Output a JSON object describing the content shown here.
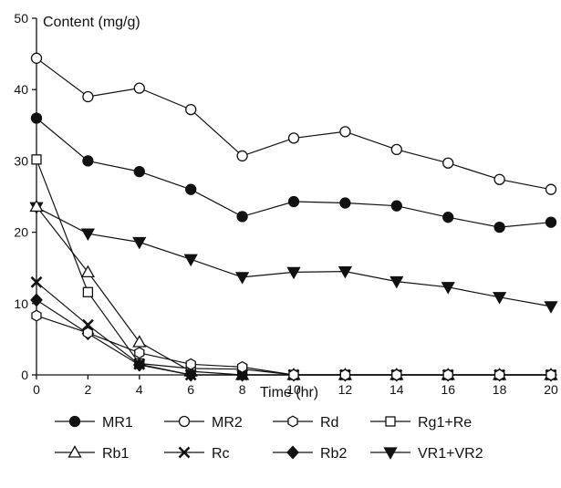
{
  "chart_data": {
    "type": "line",
    "title": "",
    "xlabel": "Time (hr)",
    "ylabel": "Content (mg/g)",
    "xlim": [
      0,
      20
    ],
    "ylim": [
      0,
      50
    ],
    "x_ticks": [
      0,
      2,
      4,
      6,
      8,
      10,
      12,
      14,
      16,
      18,
      20
    ],
    "y_ticks": [
      0,
      10,
      20,
      30,
      40,
      50
    ],
    "grid": false,
    "legend_position": "bottom",
    "x": [
      0,
      2,
      4,
      6,
      8,
      10,
      12,
      14,
      16,
      18,
      20
    ],
    "series": [
      {
        "name": "MR1",
        "marker": "filled-circle",
        "x": [
          0,
          2,
          4,
          6,
          8,
          10,
          12,
          14,
          16,
          18,
          20
        ],
        "values": [
          36.0,
          30.0,
          28.5,
          26.0,
          22.2,
          24.3,
          24.1,
          23.7,
          22.1,
          20.7,
          21.4
        ]
      },
      {
        "name": "MR2",
        "marker": "open-circle",
        "x": [
          0,
          2,
          4,
          6,
          8,
          10,
          12,
          14,
          16,
          18,
          20
        ],
        "values": [
          44.4,
          39.0,
          40.2,
          37.2,
          30.7,
          33.2,
          34.1,
          31.6,
          29.7,
          27.4,
          26.0
        ]
      },
      {
        "name": "Rd",
        "marker": "open-hexagon",
        "x": [
          0,
          2,
          4,
          6,
          8,
          10,
          12,
          14,
          16,
          18,
          20
        ],
        "values": [
          8.3,
          5.9,
          3.1,
          1.5,
          1.1,
          0,
          0,
          0,
          0,
          0,
          0
        ]
      },
      {
        "name": "Rg1+Re",
        "marker": "open-square",
        "x": [
          0,
          2,
          4,
          6,
          8,
          10,
          12,
          14,
          16,
          18,
          20
        ],
        "values": [
          30.2,
          11.6,
          1.6,
          0.9,
          0.8,
          0,
          0,
          0,
          0,
          0,
          0
        ]
      },
      {
        "name": "Rb1",
        "marker": "open-triangle",
        "x": [
          0,
          2,
          4,
          6,
          8,
          10,
          12,
          14,
          16,
          18,
          20
        ],
        "values": [
          23.6,
          14.4,
          4.6,
          0.5,
          0,
          0,
          0,
          0,
          0,
          0,
          0
        ]
      },
      {
        "name": "Rc",
        "marker": "cross",
        "x": [
          0,
          2,
          4,
          6,
          8,
          10,
          12,
          14,
          16,
          18,
          20
        ],
        "values": [
          13.0,
          7.0,
          1.5,
          0,
          0,
          0,
          0,
          0,
          0,
          0,
          0
        ]
      },
      {
        "name": "Rb2",
        "marker": "filled-diamond",
        "x": [
          0,
          2,
          4,
          6,
          8,
          10,
          12,
          14,
          16,
          18,
          20
        ],
        "values": [
          10.5,
          5.8,
          1.4,
          0,
          0,
          0,
          0,
          0,
          0,
          0,
          0
        ]
      },
      {
        "name": "VR1+VR2",
        "marker": "filled-triangle-down",
        "x": [
          0,
          2,
          4,
          6,
          8,
          10,
          12,
          14,
          16,
          18,
          20
        ],
        "values": [
          23.5,
          19.8,
          18.6,
          16.2,
          13.7,
          14.4,
          14.5,
          13.1,
          12.3,
          10.9,
          9.6
        ]
      }
    ]
  }
}
